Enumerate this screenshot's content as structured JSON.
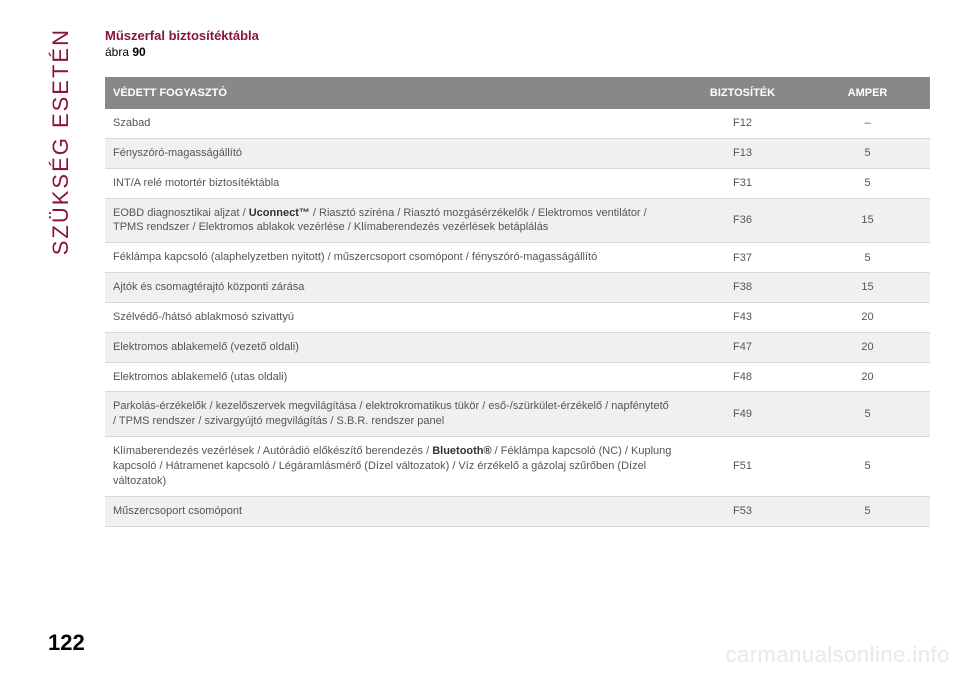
{
  "sidebar": {
    "label": "SZÜKSÉG ESETÉN"
  },
  "header": {
    "title": "Műszerfal biztosítéktábla",
    "subtitle_prefix": "ábra ",
    "subtitle_number": "90"
  },
  "table": {
    "columns": {
      "desc": "VÉDETT FOGYASZTÓ",
      "fuse": "BIZTOSÍTÉK",
      "amp": "AMPER"
    },
    "rows": [
      {
        "desc": "Szabad",
        "fuse": "F12",
        "amp": "–"
      },
      {
        "desc": "Fényszóró-magasságállító",
        "fuse": "F13",
        "amp": "5"
      },
      {
        "desc": "INT/A relé motortér biztosítéktábla",
        "fuse": "F31",
        "amp": "5"
      },
      {
        "desc_pre": "EOBD diagnosztikai aljzat / ",
        "desc_bold": "Uconnect™",
        "desc_post": " / Riasztó sziréna / Riasztó mozgásérzékelők / Elektromos ventilátor / TPMS rendszer / Elektromos ablakok vezérlése / Klímaberendezés vezérlések betáplálás",
        "fuse": "F36",
        "amp": "15"
      },
      {
        "desc": "Féklámpa kapcsoló (alaphelyzetben nyitott) / műszercsoport csomópont / fényszóró-magasságállító",
        "fuse": "F37",
        "amp": "5"
      },
      {
        "desc": "Ajtók és csomagtérajtó központi zárása",
        "fuse": "F38",
        "amp": "15"
      },
      {
        "desc": "Szélvédő-/hátsó ablakmosó szivattyú",
        "fuse": "F43",
        "amp": "20"
      },
      {
        "desc": "Elektromos ablakemelő (vezető oldali)",
        "fuse": "F47",
        "amp": "20"
      },
      {
        "desc": "Elektromos ablakemelő (utas oldali)",
        "fuse": "F48",
        "amp": "20"
      },
      {
        "desc": "Parkolás-érzékelők / kezelőszervek megvilágítása / elektrokromatikus tükör / eső-/szürkület-érzékelő / napfénytető / TPMS rendszer / szivargyújtó megvilágítás / S.B.R. rendszer panel",
        "fuse": "F49",
        "amp": "5"
      },
      {
        "desc_pre": "Klímaberendezés vezérlések / Autórádió előkészítő berendezés / ",
        "desc_bold": "Bluetooth®",
        "desc_post": " / Féklámpa kapcsoló (NC) / Kuplung kapcsoló / Hátramenet kapcsoló / Légáramlásmérő (Dízel változatok) / Víz érzékelő a gázolaj szűrőben (Dízel változatok)",
        "fuse": "F51",
        "amp": "5"
      },
      {
        "desc": "Műszercsoport csomópont",
        "fuse": "F53",
        "amp": "5"
      }
    ]
  },
  "page_number": "122",
  "watermark": "carmanualsonline.info",
  "styling": {
    "accent_color": "#8a1538",
    "header_bg": "#888888",
    "header_text": "#ffffff",
    "row_even_bg": "#f0f0f0",
    "row_odd_bg": "#ffffff",
    "body_text": "#555555",
    "border_color": "#d8d8d8",
    "watermark_color": "#e8e8e8",
    "title_fontsize": 13,
    "cell_fontsize": 11,
    "sidebar_fontsize": 22,
    "pagenum_fontsize": 22
  }
}
